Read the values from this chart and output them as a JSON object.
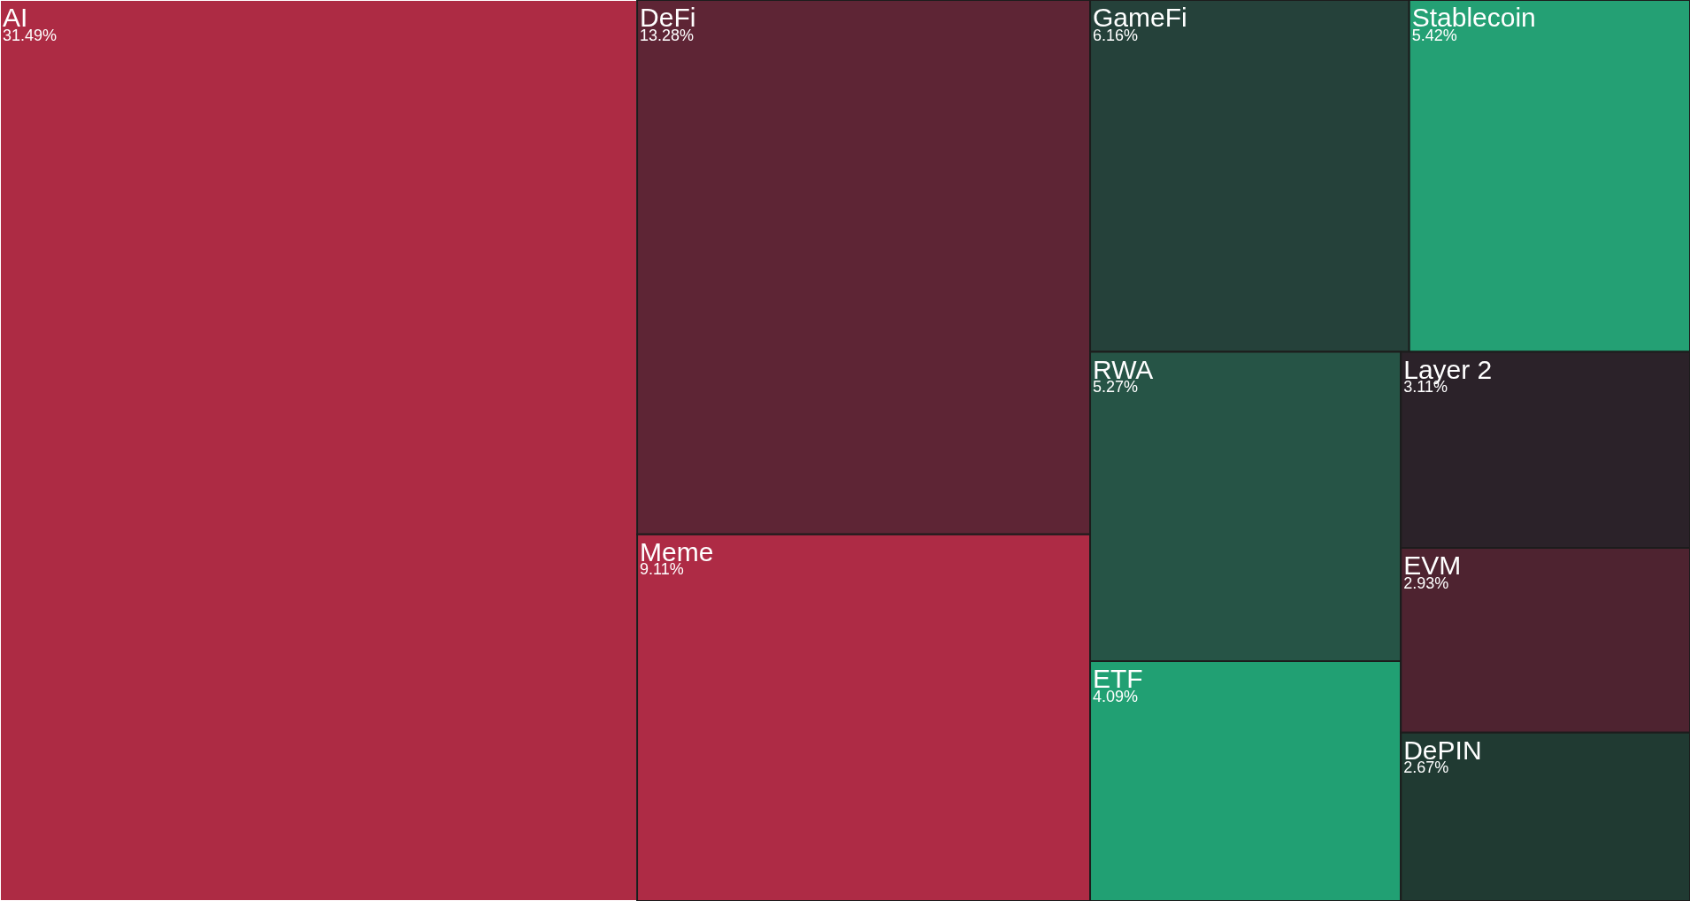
{
  "chart_data": {
    "type": "other",
    "categories": [
      "AI",
      "DeFi",
      "Meme",
      "GameFi",
      "Stablecoin",
      "RWA",
      "ETF",
      "Layer 2",
      "EVM",
      "DePIN"
    ],
    "values": [
      31.49,
      13.28,
      9.11,
      6.16,
      5.42,
      5.27,
      4.09,
      3.11,
      2.93,
      2.67
    ],
    "value_labels": [
      "31.49%",
      "13.28%",
      "9.11%",
      "6.16%",
      "5.42%",
      "5.27%",
      "4.09%",
      "3.11%",
      "2.93%",
      "2.67%"
    ],
    "colors": [
      "#ad2b44",
      "#5e2535",
      "#ae2b45",
      "#25413a",
      "#24a074",
      "#265446",
      "#21a073",
      "#2b2229",
      "#4e2330",
      "#203a32"
    ]
  }
}
